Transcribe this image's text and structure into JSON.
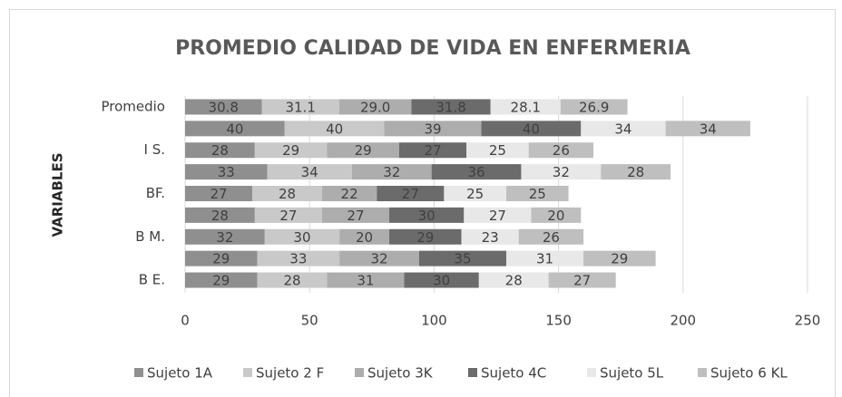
{
  "chart_data": {
    "type": "stacked-barh",
    "title": "PROMEDIO CALIDAD DE VIDA EN ENFERMERIA",
    "y_label": "VARIABLES",
    "categories": [
      "Promedio",
      null,
      "I S.",
      null,
      "BF.",
      null,
      "B M.",
      null,
      "B E."
    ],
    "series": [
      {
        "name": "Sujeto 1A",
        "color": "#8f8f8f",
        "values": [
          30.8,
          40,
          28,
          33,
          27,
          28,
          32,
          29,
          29
        ]
      },
      {
        "name": "Sujeto 2 F",
        "color": "#c9c9c9",
        "values": [
          31.1,
          40,
          29,
          34,
          28,
          27,
          30,
          33,
          28
        ]
      },
      {
        "name": "Sujeto 3K",
        "color": "#adadad",
        "values": [
          29.0,
          39,
          29,
          32,
          22,
          27,
          20,
          32,
          31
        ],
        "value_labels": [
          "29.0",
          "39",
          "29",
          "32",
          "22",
          "27",
          "20",
          "32",
          "31"
        ]
      },
      {
        "name": "Sujeto 4C",
        "color": "#6b6b6b",
        "values": [
          31.8,
          40,
          27,
          36,
          27,
          30,
          29,
          35,
          30
        ]
      },
      {
        "name": "Sujeto 5L",
        "color": "#e8e8e8",
        "values": [
          28.1,
          34,
          25,
          32,
          25,
          27,
          23,
          31,
          28
        ]
      },
      {
        "name": "Sujeto 6 KL",
        "color": "#bfbfbf",
        "values": [
          26.9,
          34,
          26,
          28,
          25,
          20,
          26,
          29,
          27
        ]
      }
    ],
    "xlim": [
      0,
      250
    ],
    "xticks": [
      0,
      50,
      100,
      150,
      200,
      250
    ],
    "grid": true,
    "legend": "bottom"
  }
}
